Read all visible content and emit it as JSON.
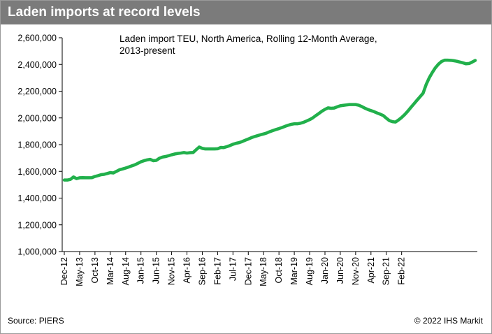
{
  "header": {
    "title": "Laden imports at record levels"
  },
  "footer": {
    "source": "Source: PIERS",
    "copyright": "© 2022 IHS Markit"
  },
  "colors": {
    "line": "#21b04b",
    "header_bg": "#7b7b7b",
    "axis": "#000000"
  },
  "chart_data": {
    "type": "line",
    "title": "Laden import TEU, North America, Rolling 12-Month Average,",
    "subtitle": "2013-present",
    "xlabel": "",
    "ylabel": "",
    "ylim": [
      1000000,
      2600000
    ],
    "yticks": [
      1000000,
      1200000,
      1400000,
      1600000,
      1800000,
      2000000,
      2200000,
      2400000,
      2600000
    ],
    "ytick_labels": [
      "1,000,000",
      "1,200,000",
      "1,400,000",
      "1,600,000",
      "1,800,000",
      "2,000,000",
      "2,200,000",
      "2,400,000",
      "2,600,000"
    ],
    "xtick_labels": [
      "Dec-12",
      "May-13",
      "Oct-13",
      "Mar-14",
      "Aug-14",
      "Jan-15",
      "Jun-15",
      "Nov-15",
      "Apr-16",
      "Sep-16",
      "Feb-17",
      "Jul-17",
      "Dec-17",
      "May-18",
      "Oct-18",
      "Mar-19",
      "Aug-19",
      "Jan-20",
      "Jun-20",
      "Nov-20",
      "Apr-21",
      "Sep-21",
      "Feb-22"
    ],
    "grid": false,
    "legend": "none",
    "series": [
      {
        "values": [
          1535000,
          1535000,
          1540000,
          1558000,
          1546000,
          1552000,
          1553000,
          1552000,
          1552000,
          1553000,
          1562000,
          1568000,
          1575000,
          1578000,
          1584000,
          1591000,
          1588000,
          1600000,
          1612000,
          1618000,
          1625000,
          1633000,
          1641000,
          1649000,
          1660000,
          1672000,
          1680000,
          1686000,
          1690000,
          1680000,
          1682000,
          1698000,
          1707000,
          1711000,
          1717000,
          1724000,
          1730000,
          1734000,
          1737000,
          1741000,
          1737000,
          1740000,
          1741000,
          1762000,
          1782000,
          1772000,
          1768000,
          1768000,
          1768000,
          1768000,
          1769000,
          1779000,
          1778000,
          1785000,
          1793000,
          1803000,
          1810000,
          1815000,
          1823000,
          1833000,
          1842000,
          1852000,
          1860000,
          1867000,
          1874000,
          1880000,
          1887000,
          1897000,
          1905000,
          1913000,
          1920000,
          1928000,
          1937000,
          1945000,
          1952000,
          1956000,
          1956000,
          1960000,
          1967000,
          1977000,
          1987000,
          2000000,
          2017000,
          2033000,
          2050000,
          2064000,
          2075000,
          2072000,
          2074000,
          2083000,
          2091000,
          2094000,
          2097000,
          2100000,
          2100000,
          2100000,
          2095000,
          2085000,
          2073000,
          2063000,
          2055000,
          2047000,
          2037000,
          2028000,
          2018000,
          1998000,
          1980000,
          1972000,
          1969000,
          1985000,
          2003000,
          2025000,
          2050000,
          2078000,
          2105000,
          2132000,
          2158000,
          2185000,
          2250000,
          2300000,
          2340000,
          2375000,
          2402000,
          2422000,
          2432000,
          2432000,
          2431000,
          2428000,
          2424000,
          2418000,
          2412000,
          2405000,
          2407000,
          2418000,
          2430000
        ]
      }
    ]
  }
}
